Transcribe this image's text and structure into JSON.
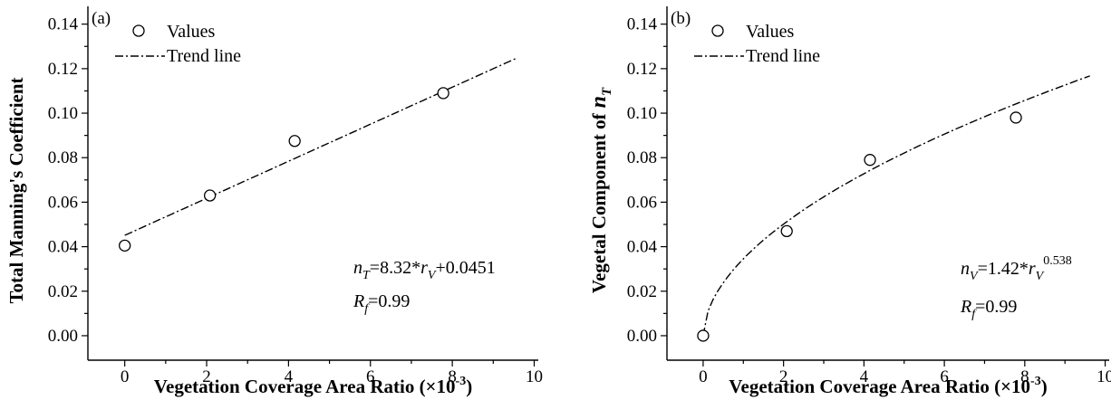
{
  "chart_data": [
    {
      "type": "scatter",
      "panel_label": "(a)",
      "ylabel": "Total Manning's Coefficient",
      "xlabel": {
        "text": "Vegetation Coverage Area Ratio (×10",
        "sup": "-3",
        "close": ")"
      },
      "x_ticks": [
        "0",
        "2",
        "4",
        "6",
        "8",
        "10"
      ],
      "y_ticks": [
        "0.00",
        "0.02",
        "0.04",
        "0.06",
        "0.08",
        "0.10",
        "0.12",
        "0.14"
      ],
      "xlim": [
        -0.9,
        10.1
      ],
      "ylim": [
        -0.011,
        0.148
      ],
      "legend": {
        "values_label": "Values",
        "trend_label": "Trend line",
        "position": "top-left"
      },
      "series": [
        {
          "kind": "points",
          "x": [
            0.0,
            2.08,
            4.15,
            7.78
          ],
          "y": [
            0.0405,
            0.063,
            0.0875,
            0.109
          ]
        },
        {
          "kind": "trend",
          "model": "linear",
          "a": 8.32,
          "b": 0.0451,
          "x_range": [
            0.0,
            9.55
          ]
        }
      ],
      "equation": {
        "lhs": "n",
        "lhs_sub": "T",
        "rhs_pre": "=8.32*",
        "var": "r",
        "var_sub": "V",
        "rhs_post": "+0.0451",
        "exp": ""
      },
      "fit": {
        "sym": "R",
        "sub": "f",
        "value": "=0.99"
      }
    },
    {
      "type": "scatter",
      "panel_label": "(b)",
      "ylabel": "Vegetal Component of",
      "ylabel_var": "n",
      "ylabel_var_sub": "T",
      "xlabel": {
        "text": "Vegetation Coverage Area Ratio (×10",
        "sup": "-3",
        "close": ")"
      },
      "x_ticks": [
        "0",
        "2",
        "4",
        "6",
        "8",
        "10"
      ],
      "y_ticks": [
        "0.00",
        "0.02",
        "0.04",
        "0.06",
        "0.08",
        "0.10",
        "0.12",
        "0.14"
      ],
      "xlim": [
        -0.9,
        10.1
      ],
      "ylim": [
        -0.011,
        0.148
      ],
      "legend": {
        "values_label": "Values",
        "trend_label": "Trend line",
        "position": "top-left"
      },
      "series": [
        {
          "kind": "points",
          "x": [
            0.0,
            2.08,
            4.15,
            7.78
          ],
          "y": [
            0.0,
            0.047,
            0.079,
            0.098
          ]
        },
        {
          "kind": "trend",
          "model": "power",
          "a": 1.42,
          "b": 0.538,
          "x_range": [
            0.0,
            9.62
          ]
        }
      ],
      "equation": {
        "lhs": "n",
        "lhs_sub": "V",
        "rhs_pre": "=1.42*",
        "var": "r",
        "var_sub": "V",
        "rhs_post": "",
        "exp": "0.538"
      },
      "fit": {
        "sym": "R",
        "sub": "f",
        "value": "=0.99"
      }
    }
  ]
}
